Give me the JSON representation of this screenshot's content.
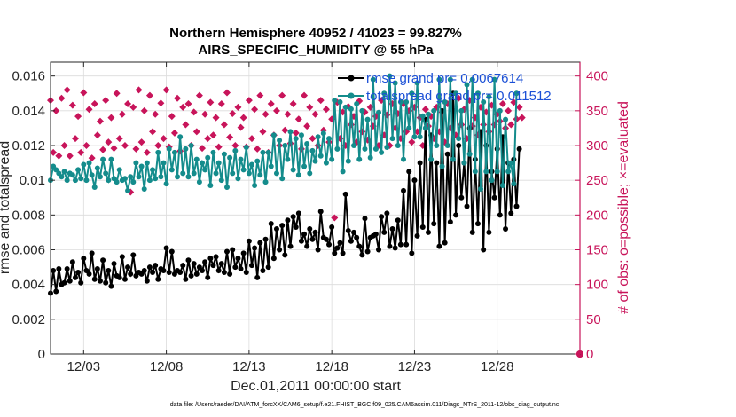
{
  "chart_data": {
    "type": "line",
    "title_line1": "Northern Hemisphere 40952 / 41023 = 99.827%",
    "title_line2": "AIRS_SPECIFIC_HUMIDITY @ 55 hPa",
    "xlabel": "Dec.01,2011 00:00:00 start",
    "ylabel": "rmse and totalspread",
    "ylabel_right": "# of obs: o=possible; ×=evaluated",
    "xlim": [
      1,
      33
    ],
    "ylim": [
      0,
      0.0168
    ],
    "ylim_right": [
      0,
      420
    ],
    "x_ticks": [
      {
        "value": 3,
        "label": "12/03"
      },
      {
        "value": 8,
        "label": "12/08"
      },
      {
        "value": 13,
        "label": "12/13"
      },
      {
        "value": 18,
        "label": "12/18"
      },
      {
        "value": 23,
        "label": "12/23"
      },
      {
        "value": 28,
        "label": "12/28"
      }
    ],
    "y_ticks": [
      {
        "value": 0,
        "label": "0"
      },
      {
        "value": 0.002,
        "label": "0.002"
      },
      {
        "value": 0.004,
        "label": "0.004"
      },
      {
        "value": 0.006,
        "label": "0.006"
      },
      {
        "value": 0.008,
        "label": "0.008"
      },
      {
        "value": 0.01,
        "label": "0.01"
      },
      {
        "value": 0.012,
        "label": "0.012"
      },
      {
        "value": 0.014,
        "label": "0.014"
      },
      {
        "value": 0.016,
        "label": "0.016"
      }
    ],
    "y_ticks_right": [
      {
        "value": 0,
        "label": "0"
      },
      {
        "value": 50,
        "label": "50"
      },
      {
        "value": 100,
        "label": "100"
      },
      {
        "value": 150,
        "label": "150"
      },
      {
        "value": 200,
        "label": "200"
      },
      {
        "value": 250,
        "label": "250"
      },
      {
        "value": 300,
        "label": "300"
      },
      {
        "value": 350,
        "label": "350"
      },
      {
        "value": 400,
        "label": "400"
      }
    ],
    "grid": true,
    "legend_position": "top-right",
    "series": [
      {
        "name": "rmse grand pr= 0.0067614",
        "axis": "left",
        "color": "#000000",
        "values": [
          0.0035,
          0.0048,
          0.0036,
          0.0049,
          0.004,
          0.0041,
          0.0049,
          0.0042,
          0.0053,
          0.0044,
          0.0047,
          0.0041,
          0.0055,
          0.0048,
          0.0046,
          0.0058,
          0.0043,
          0.0049,
          0.0042,
          0.0054,
          0.0041,
          0.0048,
          0.0039,
          0.0052,
          0.0045,
          0.0044,
          0.0056,
          0.0043,
          0.005,
          0.0046,
          0.0057,
          0.0045,
          0.0047,
          0.0046,
          0.0048,
          0.0042,
          0.005,
          0.0047,
          0.0051,
          0.0043,
          0.0049,
          0.0048,
          0.0061,
          0.0047,
          0.0059,
          0.0046,
          0.0048,
          0.0047,
          0.0051,
          0.0043,
          0.0054,
          0.0045,
          0.0052,
          0.0046,
          0.005,
          0.0048,
          0.0053,
          0.0044,
          0.0055,
          0.0051,
          0.0056,
          0.0048,
          0.0052,
          0.0047,
          0.0059,
          0.0046,
          0.006,
          0.005,
          0.0055,
          0.0049,
          0.0058,
          0.0047,
          0.0065,
          0.0051,
          0.0061,
          0.0044,
          0.0064,
          0.0048,
          0.0066,
          0.005,
          0.0075,
          0.0055,
          0.0072,
          0.006,
          0.0074,
          0.0057,
          0.0077,
          0.0062,
          0.0079,
          0.0073,
          0.0081,
          0.0065,
          0.0069,
          0.0062,
          0.0072,
          0.0066,
          0.007,
          0.006,
          0.0082,
          0.0067,
          0.0066,
          0.0063,
          0.0073,
          0.0058,
          0.0061,
          0.0064,
          0.0058,
          0.0092,
          0.0071,
          0.0065,
          0.007,
          0.0067,
          0.0062,
          0.0057,
          0.0078,
          0.0059,
          0.0067,
          0.0068,
          0.0069,
          0.006,
          0.0079,
          0.007,
          0.0081,
          0.0062,
          0.0072,
          0.0061,
          0.0077,
          0.0063,
          0.0094,
          0.0063,
          0.0105,
          0.0058,
          0.01,
          0.0068,
          0.011,
          0.0073,
          0.0135,
          0.007,
          0.0126,
          0.0075,
          0.011,
          0.0062,
          0.014,
          0.0064,
          0.0115,
          0.0076,
          0.015,
          0.008,
          0.012,
          0.009,
          0.011,
          0.0085,
          0.013,
          0.007,
          0.0112,
          0.0075,
          0.0128,
          0.006,
          0.012,
          0.007,
          0.0105,
          0.009,
          0.0118,
          0.008,
          0.0125,
          0.0072,
          0.011,
          0.0081,
          0.0112,
          0.0085,
          0.0118
        ]
      },
      {
        "name": "totalspread grand pr= 0.011512",
        "axis": "left",
        "color": "#148c8c",
        "values": [
          0.01,
          0.0108,
          0.0106,
          0.0104,
          0.0102,
          0.0105,
          0.01,
          0.0104,
          0.0103,
          0.01,
          0.0106,
          0.0101,
          0.0109,
          0.01,
          0.011,
          0.0103,
          0.0096,
          0.0107,
          0.0102,
          0.0112,
          0.0104,
          0.01,
          0.0112,
          0.0101,
          0.0099,
          0.0106,
          0.01,
          0.0101,
          0.0094,
          0.0102,
          0.0099,
          0.011,
          0.0102,
          0.0108,
          0.0095,
          0.011,
          0.01,
          0.0106,
          0.0101,
          0.0116,
          0.0102,
          0.011,
          0.0098,
          0.0118,
          0.0106,
          0.0116,
          0.0102,
          0.0125,
          0.0104,
          0.0118,
          0.0102,
          0.012,
          0.0104,
          0.0112,
          0.0099,
          0.011,
          0.0106,
          0.0113,
          0.0097,
          0.0116,
          0.0104,
          0.011,
          0.01,
          0.0115,
          0.0096,
          0.0113,
          0.0104,
          0.0117,
          0.0101,
          0.0112,
          0.0106,
          0.0119,
          0.0104,
          0.0109,
          0.0097,
          0.0111,
          0.0103,
          0.0116,
          0.0099,
          0.0116,
          0.0108,
          0.0126,
          0.0104,
          0.0123,
          0.0101,
          0.012,
          0.0112,
          0.0128,
          0.0106,
          0.0124,
          0.0103,
          0.0126,
          0.0108,
          0.0121,
          0.0104,
          0.0117,
          0.0111,
          0.0125,
          0.0114,
          0.0127,
          0.011,
          0.0124,
          0.0112,
          0.0146,
          0.0118,
          0.0145,
          0.0105,
          0.0142,
          0.0111,
          0.0141,
          0.012,
          0.0144,
          0.0112,
          0.014,
          0.0118,
          0.0135,
          0.0113,
          0.0158,
          0.0118,
          0.0139,
          0.0116,
          0.015,
          0.0119,
          0.016,
          0.0124,
          0.0156,
          0.012,
          0.0145,
          0.0112,
          0.0145,
          0.013,
          0.015,
          0.0125,
          0.0156,
          0.0125,
          0.0137,
          0.013,
          0.0138,
          0.0112,
          0.014,
          0.012,
          0.0158,
          0.0108,
          0.0145,
          0.012,
          0.0158,
          0.0112,
          0.015,
          0.0124,
          0.014,
          0.011,
          0.0155,
          0.0115,
          0.0158,
          0.0105,
          0.015,
          0.0095,
          0.0145,
          0.0105,
          0.0148,
          0.01,
          0.0158,
          0.0105,
          0.014,
          0.0097,
          0.0135,
          0.0105,
          0.011,
          0.0098,
          0.015
        ]
      },
      {
        "name": "obs possible",
        "axis": "right",
        "color": "#c8145a",
        "marker": "o",
        "values": [
          0,
          0
        ]
      },
      {
        "name": "obs evaluated",
        "axis": "right",
        "color": "#c8145a",
        "marker": "x",
        "values": [
          365,
          290,
          350,
          285,
          368,
          300,
          380,
          285,
          358,
          310,
          342,
          290,
          376,
          300,
          352,
          282,
          360,
          315,
          335,
          294,
          365,
          305,
          340,
          296,
          375,
          310,
          345,
          300,
          360,
          233,
          355,
          295,
          380,
          305,
          350,
          290,
          372,
          320,
          345,
          300,
          361,
          310,
          380,
          298,
          342,
          318,
          368,
          292,
          355,
          330,
          360,
          300,
          348,
          320,
          372,
          296,
          345,
          310,
          362,
          315,
          340,
          298,
          360,
          330,
          376,
          312,
          346,
          300,
          355,
          326,
          340,
          298,
          365,
          310,
          352,
          295,
          372,
          320,
          345,
          290,
          360,
          315,
          350,
          300,
          372,
          322,
          345,
          303,
          360,
          318,
          338,
          295,
          372,
          328,
          355,
          310,
          345,
          300,
          365,
          322,
          352,
          305,
          338,
          196,
          362,
          310,
          348,
          300,
          356,
          330,
          342,
          305,
          364,
          320,
          348,
          308,
          355,
          328,
          342,
          300,
          365,
          315,
          344,
          300,
          360,
          325,
          346,
          310,
          360,
          320,
          350,
          305,
          355,
          320,
          340,
          300,
          352,
          328,
          342,
          310,
          355,
          320,
          348,
          305,
          360,
          325,
          350,
          315,
          368,
          330,
          352,
          310,
          365,
          328,
          340,
          315,
          355,
          330,
          348,
          320,
          358,
          330,
          345,
          335,
          360,
          325,
          350,
          330,
          362,
          338,
          355,
          340
        ]
      }
    ],
    "legend": [
      {
        "label": "rmse grand pr= 0.0067614",
        "color": "#000000"
      },
      {
        "label": "totalspread grand pr= 0.011512",
        "color": "#148c8c"
      }
    ],
    "footnote": "data file: /Users/raeder/DAI/ATM_forcXX/CAM6_setup/f.e21.FHIST_BGC.f09_025.CAM6assim.011/Diags_NTrS_2011-12/obs_diag_output.nc"
  }
}
